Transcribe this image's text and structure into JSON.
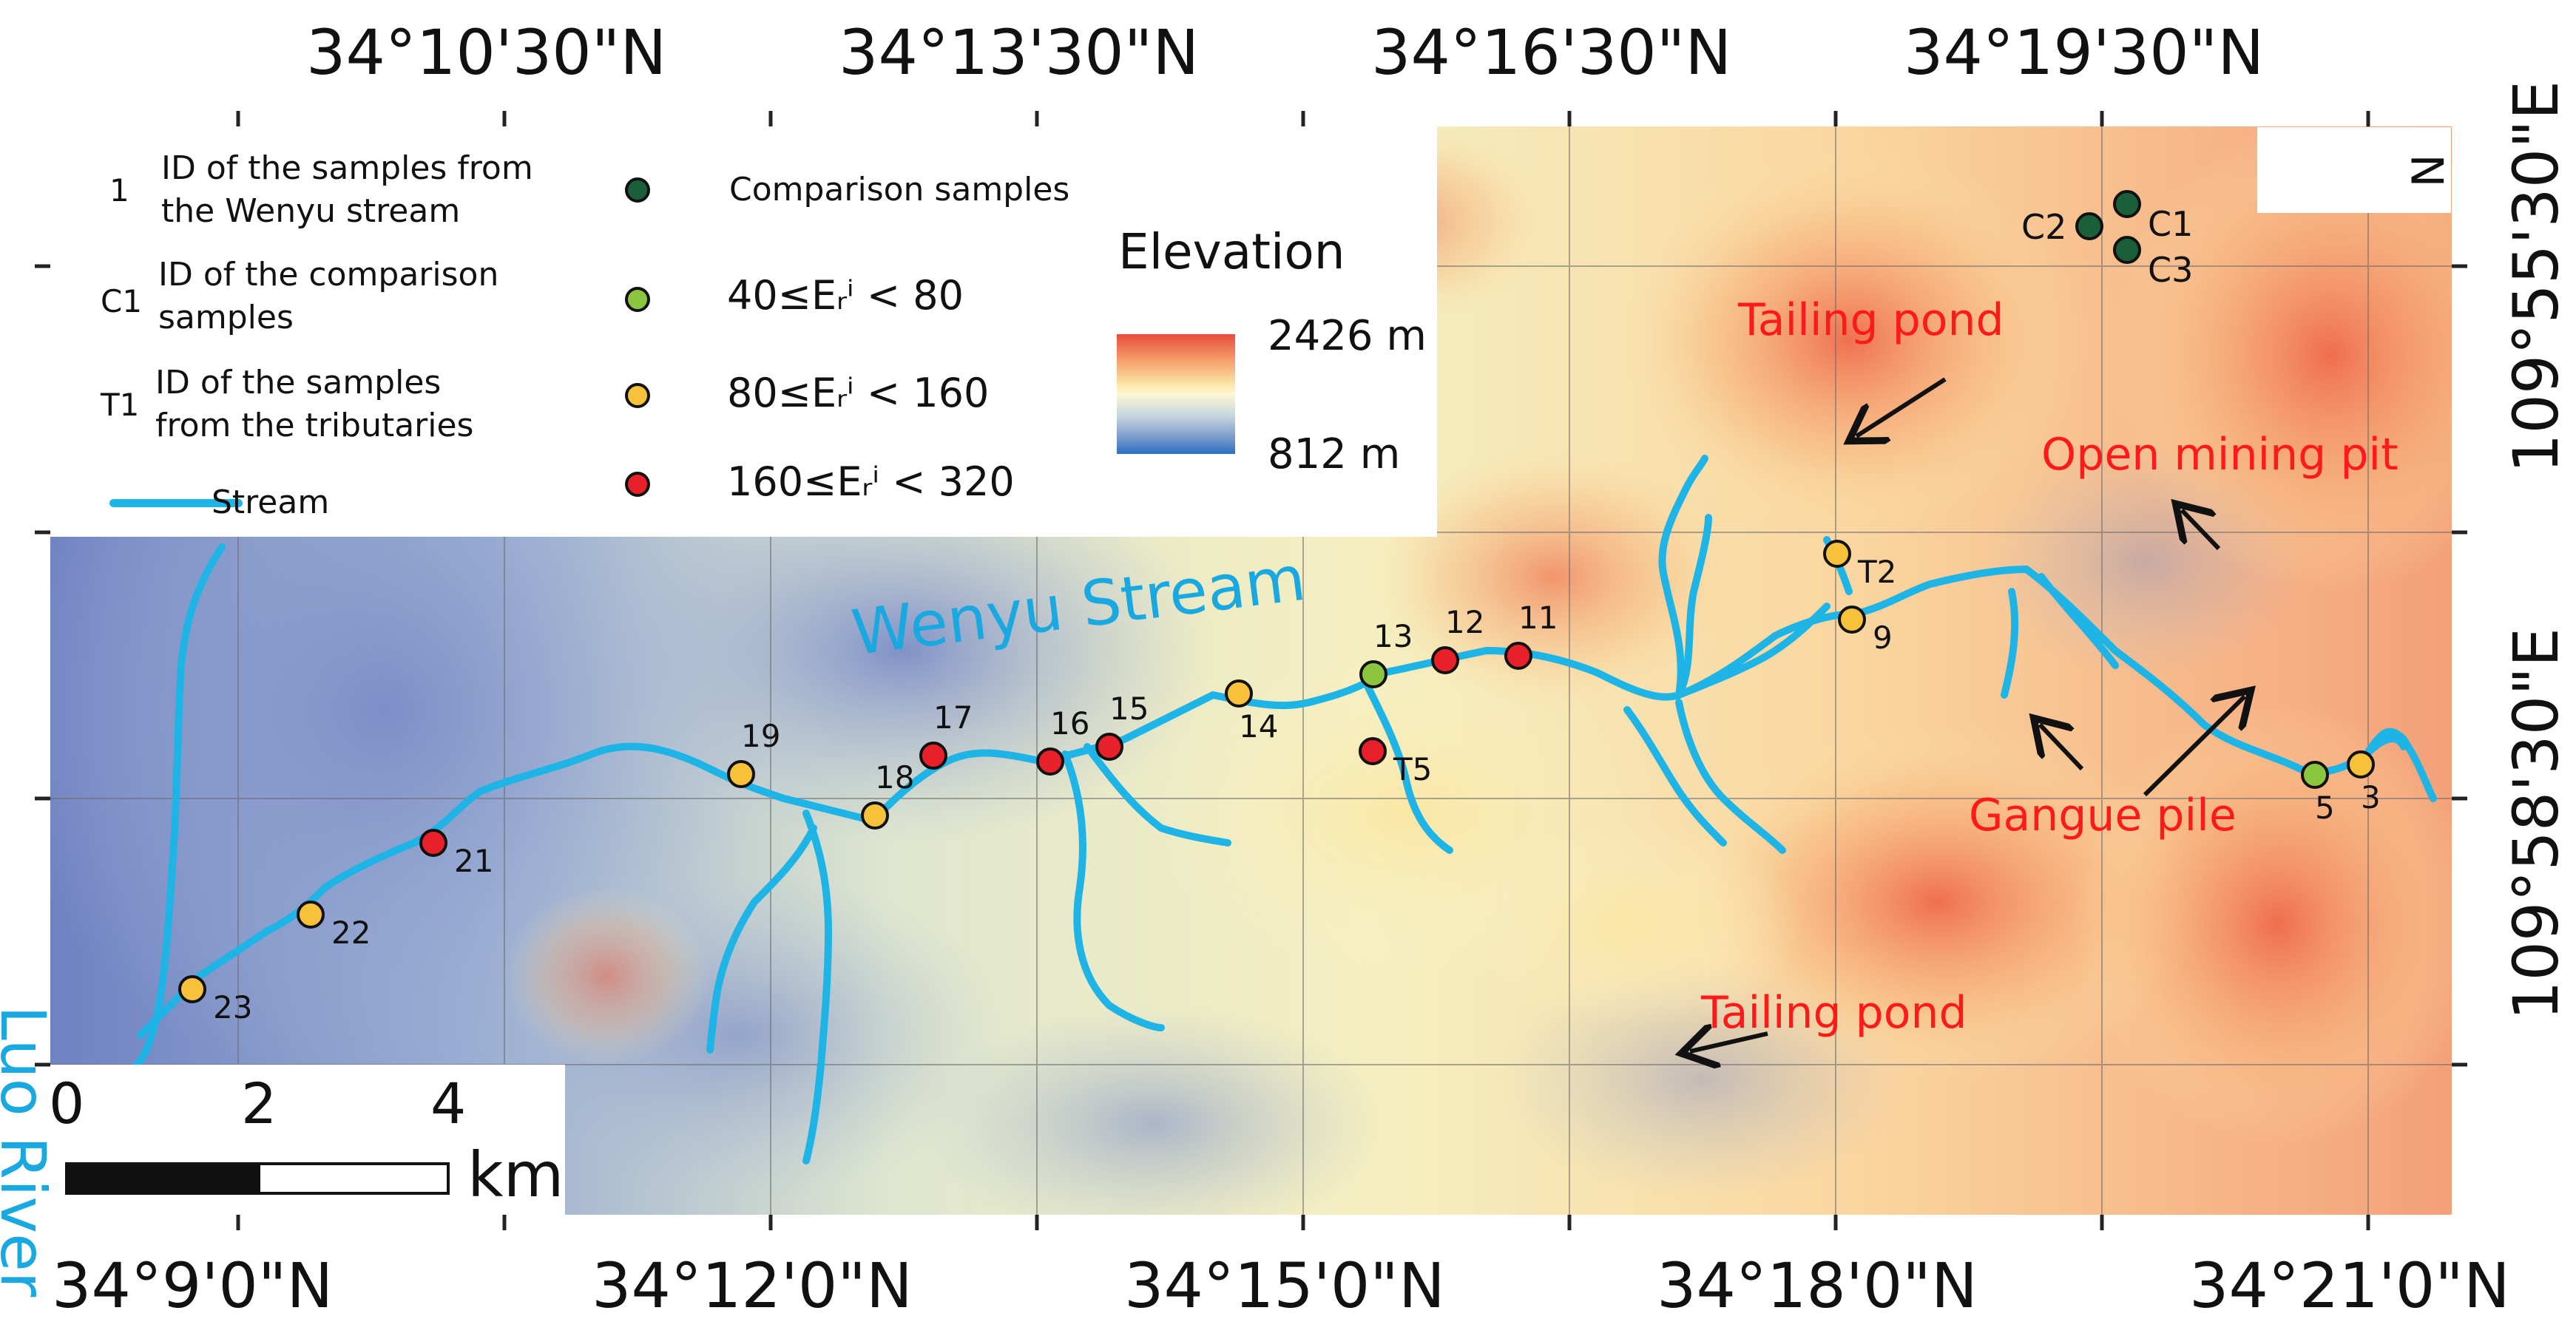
{
  "colors": {
    "stream": "#1fb4e6",
    "comparison": "#1a5e3a",
    "class_40_80": "#8cc63f",
    "class_80_160": "#f7c23a",
    "class_160_320": "#e8202a",
    "annotation": "#ff1a1a",
    "river_label": "#1aa8e0"
  },
  "top_lat_labels": [
    "34°10'30\"N",
    "34°13'30\"N",
    "34°16'30\"N",
    "34°19'30\"N"
  ],
  "bottom_lat_labels": [
    "34°9'0\"N",
    "34°12'0\"N",
    "34°15'0\"N",
    "34°18'0\"N",
    "34°21'0\"N"
  ],
  "right_lon_labels": [
    "109°55'30\"E",
    "109°58'30\"E"
  ],
  "legend": {
    "id_example": "1",
    "id_text": "ID of the samples from\nthe Wenyu stream",
    "comparison_id_example": "C1",
    "comparison_id_text": "ID of the comparison\nsamples",
    "tributary_id_example": "T1",
    "tributary_id_text": "ID of the samples\nfrom the tributaries",
    "stream_label": "Stream",
    "comparison_label": "Comparison samples",
    "class_40_80_label": "40≤Eᵣⁱ < 80",
    "class_80_160_label": "80≤Eᵣⁱ < 160",
    "class_160_320_label": "160≤Eᵣⁱ < 320"
  },
  "elevation": {
    "title": "Elevation",
    "max": "2426 m",
    "min": "812 m"
  },
  "scalebar": {
    "ticks": [
      "0",
      "2",
      "4"
    ],
    "unit": "km"
  },
  "north_label": "N",
  "annotations": {
    "tailing_pond_1": "Tailing pond",
    "tailing_pond_2": "Tailing pond",
    "open_mining_pit": "Open mining pit",
    "gangue_pile": "Gangue pile"
  },
  "river_labels": {
    "luo": "Luo River",
    "wenyu": "Wenyu Stream"
  },
  "samples": [
    {
      "id": "23",
      "class": "80-160"
    },
    {
      "id": "22",
      "class": "80-160"
    },
    {
      "id": "21",
      "class": "160-320"
    },
    {
      "id": "19",
      "class": "80-160"
    },
    {
      "id": "18",
      "class": "80-160"
    },
    {
      "id": "17",
      "class": "160-320"
    },
    {
      "id": "16",
      "class": "160-320"
    },
    {
      "id": "15",
      "class": "160-320"
    },
    {
      "id": "14",
      "class": "80-160"
    },
    {
      "id": "13",
      "class": "40-80"
    },
    {
      "id": "T5",
      "class": "160-320"
    },
    {
      "id": "12",
      "class": "160-320"
    },
    {
      "id": "11",
      "class": "160-320"
    },
    {
      "id": "T2",
      "class": "80-160"
    },
    {
      "id": "9",
      "class": "80-160"
    },
    {
      "id": "5",
      "class": "40-80"
    },
    {
      "id": "3",
      "class": "80-160"
    },
    {
      "id": "C1",
      "class": "comparison"
    },
    {
      "id": "C2",
      "class": "comparison"
    },
    {
      "id": "C3",
      "class": "comparison"
    }
  ]
}
